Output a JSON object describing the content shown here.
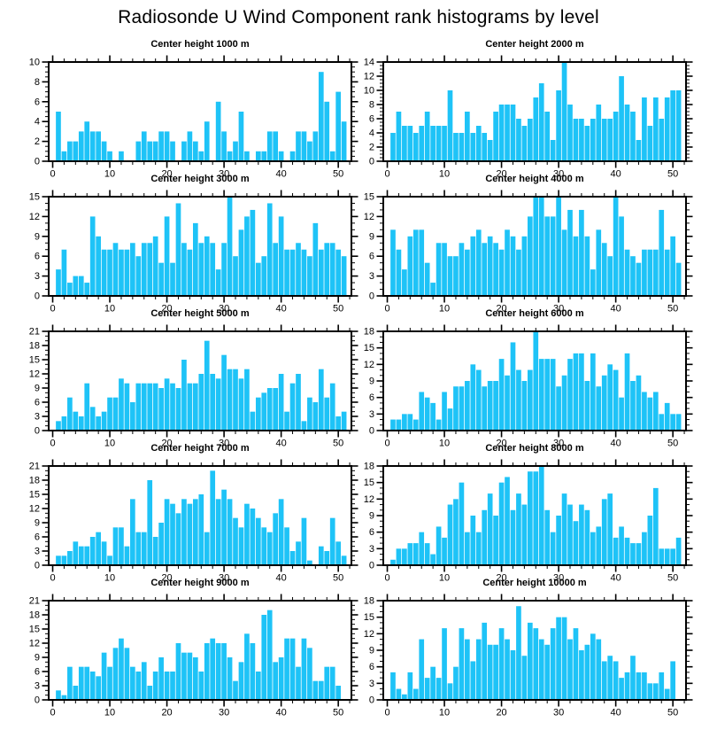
{
  "page": {
    "title": "Radiosonde U Wind Component rank histograms by level"
  },
  "chart_data": {
    "type": "bar",
    "subtype": "rank-histogram-grid",
    "grid": "5 rows x 2 columns",
    "bar_color": "#1EC3F7",
    "frame_color": "#000000",
    "text_color": "#000000",
    "background_color": "#ffffff",
    "xlabel": "",
    "ylabel": "",
    "legend": "none",
    "grid_lines": false,
    "x_ticks": [
      0,
      10,
      20,
      30,
      40,
      50
    ],
    "x_minor_step": 2,
    "x_range": [
      -0.7,
      52.3
    ],
    "ranks": "1 to 51",
    "charts": [
      {
        "title": "Center height 1000 m",
        "ylim": [
          0,
          10
        ],
        "ystep": 2,
        "y_ticks": [
          0,
          2,
          4,
          6,
          8,
          10
        ],
        "values": [
          5,
          1,
          2,
          2,
          3,
          4,
          3,
          3,
          2,
          1,
          0,
          1,
          0,
          0,
          2,
          3,
          2,
          2,
          3,
          3,
          2,
          0,
          2,
          3,
          2,
          1,
          4,
          0,
          6,
          3,
          1,
          2,
          5,
          1,
          0,
          1,
          1,
          3,
          3,
          1,
          0,
          1,
          3,
          3,
          2,
          3,
          9,
          6,
          1,
          7,
          4
        ]
      },
      {
        "title": "Center height 2000 m",
        "ylim": [
          0,
          14
        ],
        "ystep": 2,
        "y_ticks": [
          0,
          2,
          4,
          6,
          8,
          10,
          12,
          14
        ],
        "values": [
          4,
          7,
          5,
          5,
          4,
          5,
          7,
          5,
          5,
          5,
          10,
          4,
          4,
          7,
          4,
          5,
          4,
          3,
          7,
          8,
          8,
          8,
          6,
          5,
          6,
          9,
          11,
          7,
          3,
          10,
          14,
          8,
          6,
          6,
          5,
          6,
          8,
          6,
          6,
          7,
          12,
          8,
          7,
          3,
          9,
          5,
          9,
          6,
          9,
          10,
          10
        ]
      },
      {
        "title": "Center height 3000 m",
        "ylim": [
          0,
          15
        ],
        "ystep": 3,
        "y_ticks": [
          0,
          3,
          6,
          9,
          12,
          15
        ],
        "values": [
          4,
          7,
          2,
          3,
          3,
          2,
          12,
          9,
          7,
          7,
          8,
          7,
          7,
          8,
          6,
          8,
          8,
          9,
          5,
          12,
          5,
          14,
          8,
          7,
          11,
          8,
          9,
          8,
          4,
          8,
          15,
          6,
          10,
          12,
          13,
          5,
          6,
          14,
          8,
          12,
          7,
          7,
          8,
          7,
          6,
          11,
          7,
          8,
          8,
          7,
          6
        ]
      },
      {
        "title": "Center height 4000 m",
        "ylim": [
          0,
          15
        ],
        "ystep": 3,
        "y_ticks": [
          0,
          3,
          6,
          9,
          12,
          15
        ],
        "values": [
          10,
          7,
          4,
          9,
          10,
          10,
          5,
          2,
          8,
          8,
          6,
          6,
          8,
          7,
          9,
          10,
          8,
          9,
          8,
          7,
          10,
          9,
          7,
          9,
          12,
          15,
          15,
          12,
          12,
          15,
          10,
          13,
          9,
          13,
          9,
          4,
          10,
          8,
          6,
          15,
          12,
          7,
          6,
          5,
          7,
          7,
          7,
          13,
          7,
          9,
          5
        ]
      },
      {
        "title": "Center height 5000 m",
        "ylim": [
          0,
          21
        ],
        "ystep": 3,
        "y_ticks": [
          0,
          3,
          6,
          9,
          12,
          15,
          18,
          21
        ],
        "values": [
          2,
          3,
          7,
          4,
          3,
          10,
          5,
          3,
          4,
          7,
          7,
          11,
          10,
          6,
          10,
          10,
          10,
          10,
          9,
          11,
          10,
          9,
          15,
          10,
          10,
          12,
          19,
          12,
          11,
          16,
          13,
          13,
          11,
          13,
          4,
          7,
          8,
          9,
          9,
          12,
          4,
          10,
          12,
          2,
          7,
          6,
          13,
          7,
          10,
          3,
          4
        ]
      },
      {
        "title": "Center height 6000 m",
        "ylim": [
          0,
          18
        ],
        "ystep": 3,
        "y_ticks": [
          0,
          3,
          6,
          9,
          12,
          15,
          18
        ],
        "values": [
          2,
          2,
          3,
          3,
          2,
          7,
          6,
          5,
          2,
          7,
          4,
          8,
          8,
          9,
          12,
          11,
          8,
          9,
          9,
          13,
          10,
          16,
          11,
          9,
          11,
          18,
          13,
          13,
          13,
          8,
          10,
          13,
          14,
          14,
          9,
          14,
          8,
          10,
          12,
          11,
          6,
          14,
          9,
          10,
          7,
          6,
          7,
          3,
          5,
          3,
          3
        ]
      },
      {
        "title": "Center height 7000 m",
        "ylim": [
          0,
          21
        ],
        "ystep": 3,
        "y_ticks": [
          0,
          3,
          6,
          9,
          12,
          15,
          18,
          21
        ],
        "values": [
          2,
          2,
          3,
          5,
          4,
          4,
          6,
          7,
          5,
          2,
          8,
          8,
          4,
          14,
          7,
          7,
          18,
          6,
          9,
          14,
          13,
          11,
          14,
          13,
          14,
          15,
          7,
          20,
          14,
          16,
          14,
          10,
          8,
          13,
          12,
          10,
          8,
          7,
          11,
          14,
          8,
          3,
          5,
          10,
          1,
          0,
          4,
          3,
          10,
          5,
          2
        ]
      },
      {
        "title": "Center height 8000 m",
        "ylim": [
          0,
          18
        ],
        "ystep": 3,
        "y_ticks": [
          0,
          3,
          6,
          9,
          12,
          15,
          18
        ],
        "values": [
          1,
          3,
          3,
          4,
          4,
          6,
          4,
          2,
          7,
          5,
          11,
          12,
          15,
          6,
          9,
          6,
          10,
          13,
          9,
          15,
          16,
          10,
          13,
          11,
          17,
          17,
          18,
          10,
          6,
          9,
          13,
          11,
          8,
          11,
          10,
          6,
          7,
          12,
          13,
          5,
          7,
          5,
          4,
          4,
          6,
          9,
          14,
          3,
          3,
          3,
          5
        ]
      },
      {
        "title": "Center height 9000 m",
        "ylim": [
          0,
          21
        ],
        "ystep": 3,
        "y_ticks": [
          0,
          3,
          6,
          9,
          12,
          15,
          18,
          21
        ],
        "values": [
          2,
          1,
          7,
          3,
          7,
          7,
          6,
          5,
          10,
          7,
          11,
          13,
          11,
          7,
          6,
          8,
          3,
          6,
          9,
          6,
          6,
          12,
          10,
          10,
          9,
          6,
          12,
          13,
          12,
          12,
          9,
          4,
          8,
          14,
          12,
          6,
          18,
          19,
          8,
          9,
          13,
          13,
          7,
          13,
          11,
          4,
          4,
          7,
          7,
          3,
          0
        ]
      },
      {
        "title": "Center height 10000 m",
        "ylim": [
          0,
          18
        ],
        "ystep": 3,
        "y_ticks": [
          0,
          3,
          6,
          9,
          12,
          15,
          18
        ],
        "values": [
          5,
          2,
          1,
          5,
          2,
          11,
          4,
          6,
          4,
          13,
          3,
          6,
          13,
          11,
          7,
          11,
          14,
          10,
          10,
          13,
          11,
          9,
          17,
          8,
          14,
          13,
          11,
          10,
          13,
          15,
          15,
          11,
          13,
          9,
          10,
          12,
          11,
          7,
          8,
          7,
          4,
          5,
          8,
          5,
          5,
          3,
          3,
          5,
          2,
          7,
          0
        ]
      }
    ]
  }
}
